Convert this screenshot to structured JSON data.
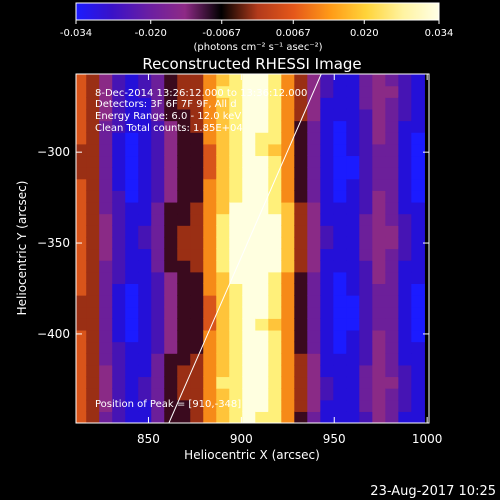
{
  "colorbar": {
    "tick_labels": [
      "-0.034",
      "-0.020",
      "-0.0067",
      "0.0067",
      "0.020",
      "0.034"
    ],
    "tick_values": [
      -0.034,
      -0.02,
      -0.0067,
      0.0067,
      0.02,
      0.034
    ],
    "range": [
      -0.034,
      0.034
    ],
    "unit_label": "(photons cm⁻² s⁻¹ asec⁻²)",
    "colors": [
      "#1b1bff",
      "#3a12c8",
      "#6a1ea3",
      "#8e2a86",
      "#000000",
      "#b23a1b",
      "#e5571a",
      "#ff9a17",
      "#ffd43a",
      "#fff3a0",
      "#ffffe6"
    ]
  },
  "chart_data": {
    "type": "heatmap",
    "title": "Reconstructed RHESSI Image",
    "xlabel": "Heliocentric X (arcsec)",
    "ylabel": "Heliocentric Y (arcsec)",
    "xlim": [
      811,
      1001
    ],
    "ylim": [
      -449,
      -257
    ],
    "x_ticks": [
      850,
      900,
      950,
      1000
    ],
    "y_ticks": [
      -300,
      -350,
      -400
    ],
    "x_tick_labels": [
      "850",
      "900",
      "950",
      "1000"
    ],
    "y_tick_labels": [
      "−300",
      "−350",
      "−400"
    ],
    "annotations": [
      "8-Dec-2014 13:26:12.000 to 13:36:12.000",
      "Detectors: 3F 6F 7F 9F, All d",
      "Energy Range: 6.0 - 12.0 keV",
      "Clean    Total counts: 1.85E+04"
    ],
    "peak_label": "Position of Peak = [910,-348]",
    "peak": [
      910,
      -348
    ],
    "column_band_values": [
      {
        "x": 813,
        "level": 0.62
      },
      {
        "x": 820,
        "level": 0.55
      },
      {
        "x": 827,
        "level": 0.3
      },
      {
        "x": 834,
        "level": 0.15
      },
      {
        "x": 841,
        "level": 0.05
      },
      {
        "x": 848,
        "level": 0.1
      },
      {
        "x": 855,
        "level": 0.22
      },
      {
        "x": 862,
        "level": 0.4
      },
      {
        "x": 869,
        "level": 0.47
      },
      {
        "x": 876,
        "level": 0.5
      },
      {
        "x": 883,
        "level": 0.7
      },
      {
        "x": 890,
        "level": 0.82
      },
      {
        "x": 897,
        "level": 0.9
      },
      {
        "x": 904,
        "level": 0.95
      },
      {
        "x": 911,
        "level": 0.93
      },
      {
        "x": 918,
        "level": 0.85
      },
      {
        "x": 925,
        "level": 0.72
      },
      {
        "x": 932,
        "level": 0.48
      },
      {
        "x": 939,
        "level": 0.3
      },
      {
        "x": 946,
        "level": 0.1
      },
      {
        "x": 953,
        "level": 0.04
      },
      {
        "x": 960,
        "level": 0.08
      },
      {
        "x": 967,
        "level": 0.2
      },
      {
        "x": 974,
        "level": 0.34
      },
      {
        "x": 981,
        "level": 0.28
      },
      {
        "x": 988,
        "level": 0.12
      },
      {
        "x": 995,
        "level": 0.05
      }
    ],
    "limb_line": {
      "x": [
        861,
        943
      ],
      "y": [
        -449,
        -257
      ]
    }
  },
  "timestamp": "23-Aug-2017 10:25"
}
